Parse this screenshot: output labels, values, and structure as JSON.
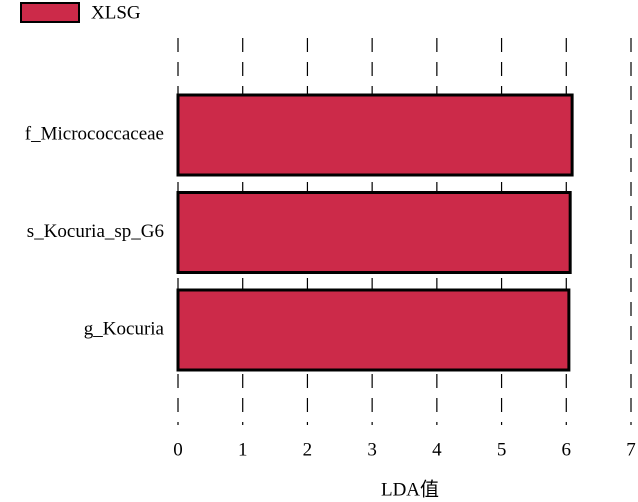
{
  "chart_data": {
    "type": "bar",
    "orientation": "horizontal",
    "categories": [
      "f_Micrococcaceae",
      "s_Kocuria_sp_G6",
      "g_Kocuria"
    ],
    "series": [
      {
        "name": "XLSG",
        "color": "#cc2a49",
        "values": [
          6.09,
          6.06,
          6.04
        ]
      }
    ],
    "xlabel": "LDA值",
    "xlim": [
      0,
      7
    ],
    "xticks": [
      0,
      1,
      2,
      3,
      4,
      5,
      6,
      7
    ],
    "grid": true
  }
}
